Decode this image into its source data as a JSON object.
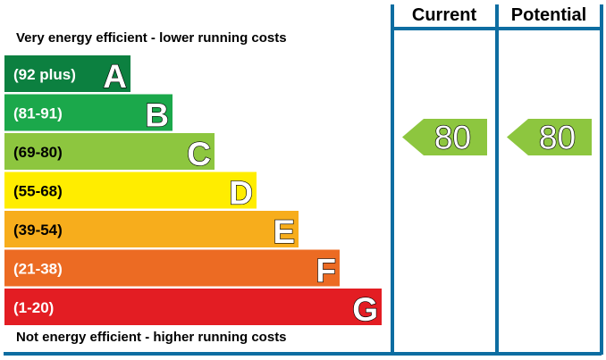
{
  "chart_data": {
    "type": "bar",
    "top_caption": "Very energy efficient - lower running costs",
    "bottom_caption": "Not energy efficient - higher running costs",
    "bands": [
      {
        "letter": "A",
        "range": "(92 plus)",
        "color": "#0c8040",
        "text_color": "#ffffff"
      },
      {
        "letter": "B",
        "range": "(81-91)",
        "color": "#1ba84b",
        "text_color": "#ffffff"
      },
      {
        "letter": "C",
        "range": "(69-80)",
        "color": "#8dc63f",
        "text_color": "#000000"
      },
      {
        "letter": "D",
        "range": "(55-68)",
        "color": "#ffed00",
        "text_color": "#000000"
      },
      {
        "letter": "E",
        "range": "(39-54)",
        "color": "#f7ad1c",
        "text_color": "#000000"
      },
      {
        "letter": "F",
        "range": "(21-38)",
        "color": "#ec6b23",
        "text_color": "#ffffff"
      },
      {
        "letter": "G",
        "range": "(1-20)",
        "color": "#e31d23",
        "text_color": "#ffffff"
      }
    ],
    "columns": [
      {
        "label": "Current",
        "value": 80,
        "value_label": "80",
        "band": "C"
      },
      {
        "label": "Potential",
        "value": 80,
        "value_label": "80",
        "band": "C"
      }
    ],
    "colors": {
      "frame": "#0d6da1",
      "arrow": "#8dc63f"
    }
  }
}
